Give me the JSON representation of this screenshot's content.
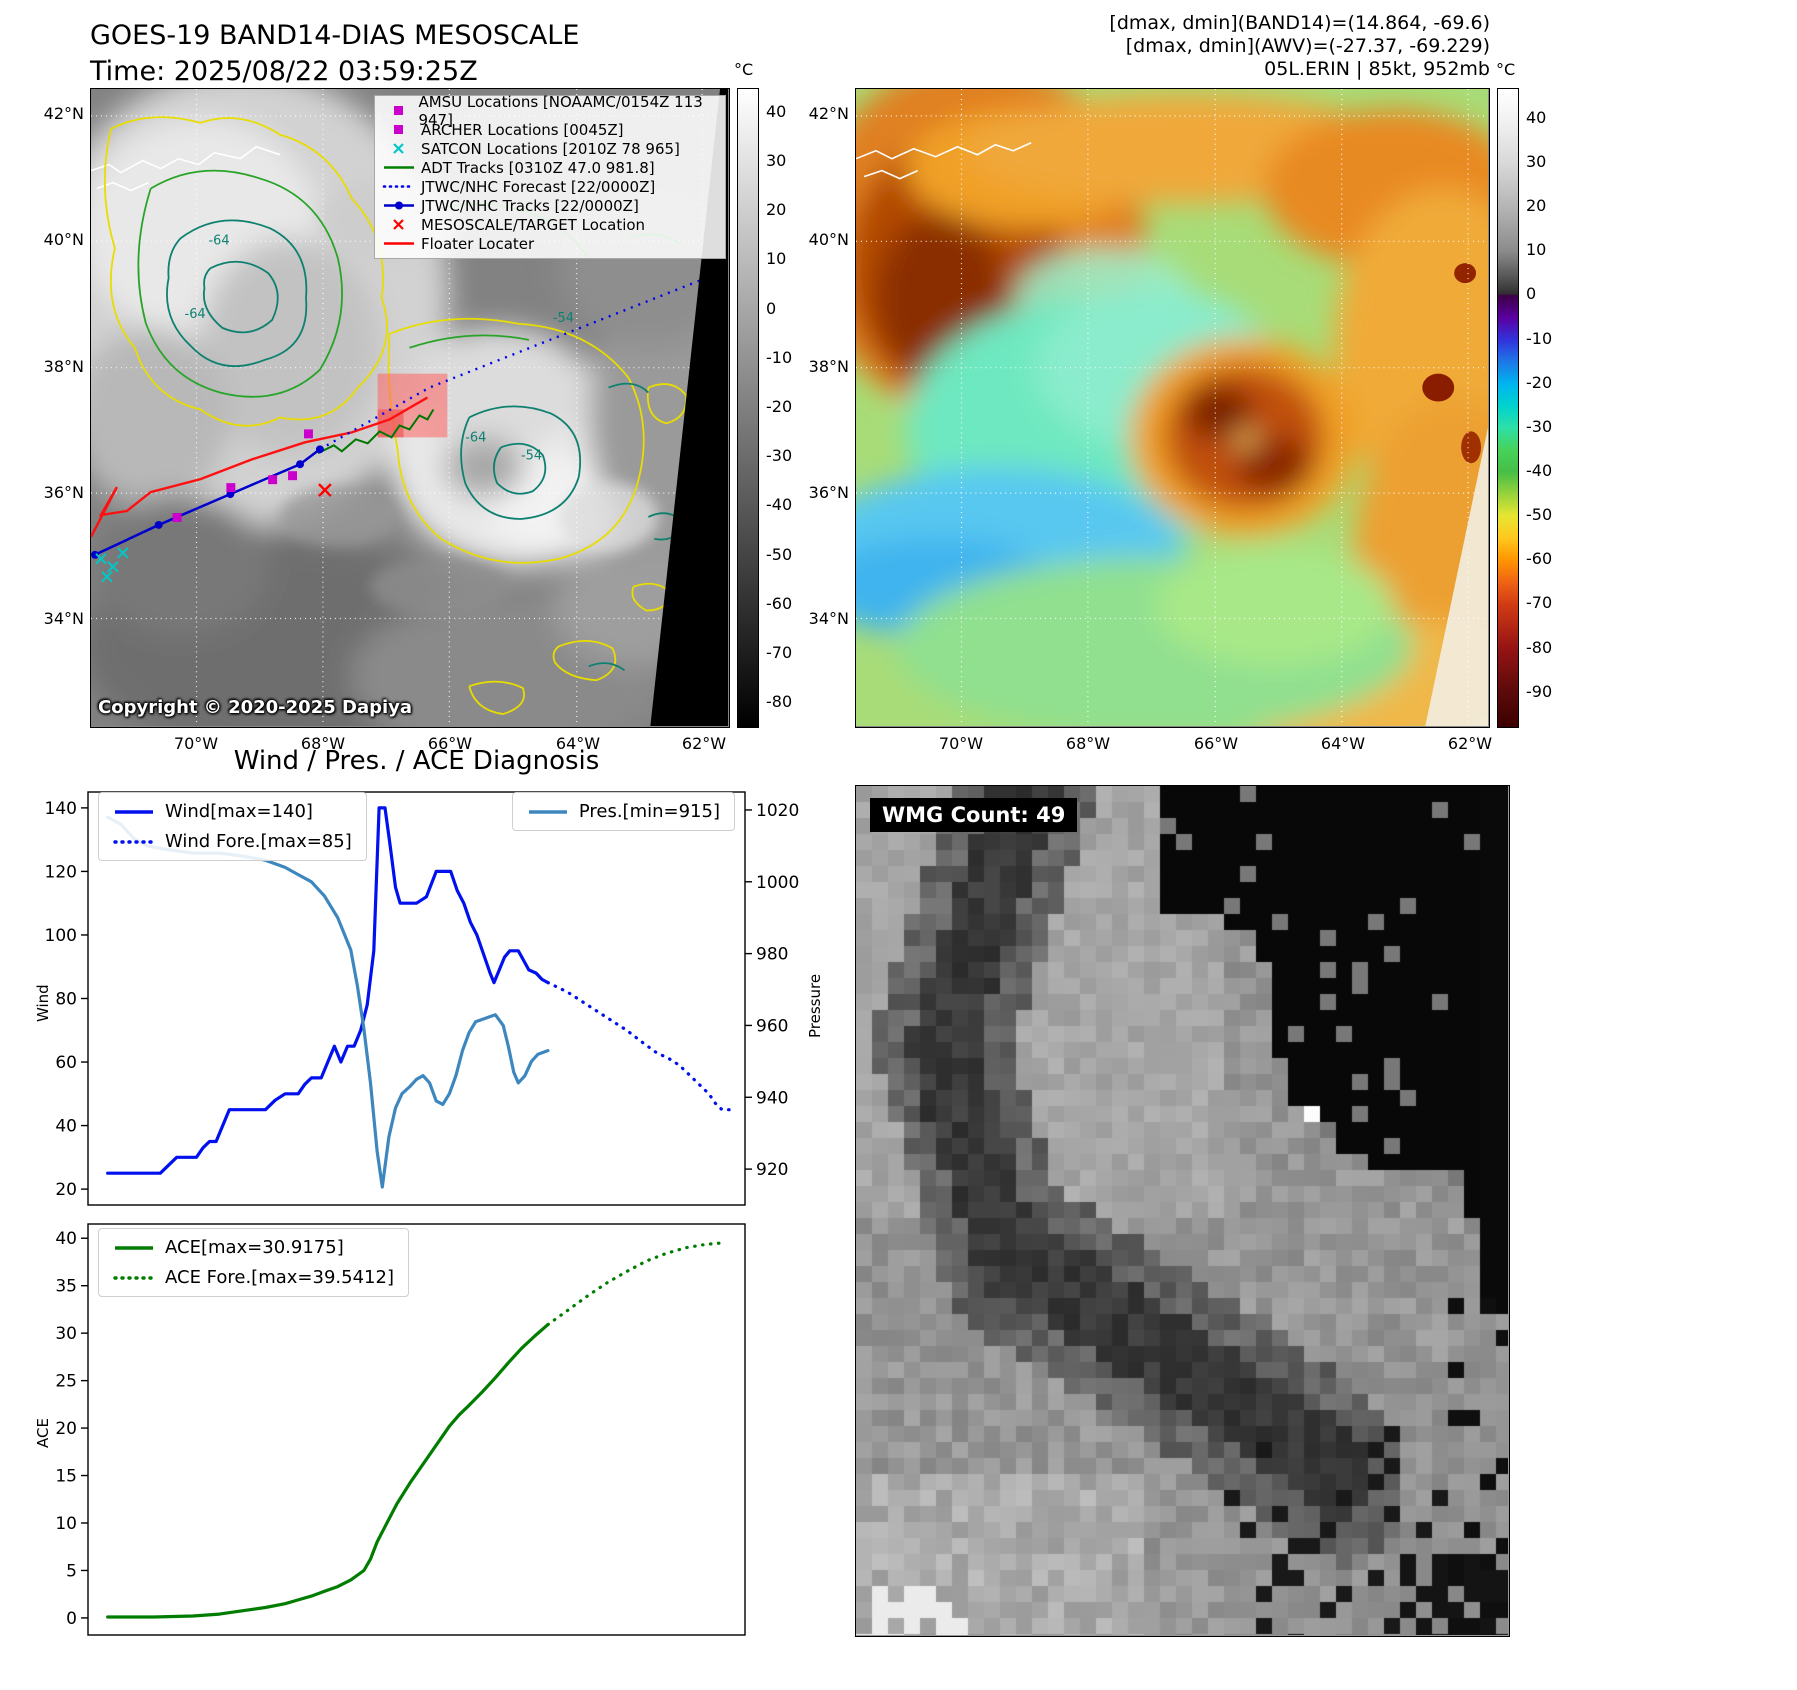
{
  "band14": {
    "title_line1": "GOES-19 BAND14-DIAS MESOSCALE",
    "title_line2": "Time: 2025/08/22 03:59:25Z",
    "copyright": "Copyright © 2020-2025 Dapiya",
    "legend": [
      {
        "label": "AMSU Locations [NOAAMC/0154Z 113 947]",
        "marker": "square",
        "color": "#cc00cc"
      },
      {
        "label": "ARCHER Locations [0045Z]",
        "marker": "square",
        "color": "#cc00cc"
      },
      {
        "label": "SATCON Locations [2010Z 78 965]",
        "marker": "x",
        "color": "#00c8c8"
      },
      {
        "label": "ADT Tracks [0310Z 47.0 981.8]",
        "marker": "line",
        "color": "#008000"
      },
      {
        "label": "JTWC/NHC Forecast [22/0000Z]",
        "marker": "dotted",
        "color": "#0000ee"
      },
      {
        "label": "JTWC/NHC Tracks [22/0000Z]",
        "marker": "line-dot",
        "color": "#0000cc"
      },
      {
        "label": "MESOSCALE/TARGET Location",
        "marker": "x",
        "color": "#ff0000"
      },
      {
        "label": "Floater Locater",
        "marker": "line",
        "color": "#ff0000"
      }
    ],
    "colorbar": {
      "unit": "°C",
      "ticks": [
        40,
        30,
        20,
        10,
        0,
        -10,
        -20,
        -30,
        -40,
        -50,
        -60,
        -70,
        -80
      ]
    },
    "lat_ticks": [
      "42°N",
      "40°N",
      "38°N",
      "36°N",
      "34°N"
    ],
    "lon_ticks": [
      "70°W",
      "68°W",
      "66°W",
      "64°W",
      "62°W"
    ],
    "contour_labels": [
      "-64",
      "-64",
      "-54",
      "-64",
      "-54"
    ]
  },
  "awv": {
    "header_line1": "[dmax, dmin](BAND14)=(14.864, -69.6)",
    "header_line2": "[dmax, dmin](AWV)=(-27.37, -69.229)",
    "header_line3": "05L.ERIN | 85kt, 952mb",
    "colorbar": {
      "unit": "°C",
      "ticks": [
        40,
        30,
        20,
        10,
        0,
        -10,
        -20,
        -30,
        -40,
        -50,
        -60,
        -70,
        -80,
        -90
      ],
      "stops": [
        {
          "v": 47,
          "c": "#ffffff"
        },
        {
          "v": 40,
          "c": "#f2f2f2"
        },
        {
          "v": 30,
          "c": "#d8d8d8"
        },
        {
          "v": 20,
          "c": "#b4b4b4"
        },
        {
          "v": 10,
          "c": "#8a8a8a"
        },
        {
          "v": 3,
          "c": "#4a4a4a"
        },
        {
          "v": 0.5,
          "c": "#303030"
        },
        {
          "v": 0,
          "c": "#3c0046"
        },
        {
          "v": -5,
          "c": "#5a00a0"
        },
        {
          "v": -10,
          "c": "#3232dc"
        },
        {
          "v": -15,
          "c": "#1e78e6"
        },
        {
          "v": -20,
          "c": "#00b4f0"
        },
        {
          "v": -25,
          "c": "#00d2cd"
        },
        {
          "v": -30,
          "c": "#2ee0a8"
        },
        {
          "v": -35,
          "c": "#46d25a"
        },
        {
          "v": -40,
          "c": "#46be46"
        },
        {
          "v": -45,
          "c": "#96d23c"
        },
        {
          "v": -50,
          "c": "#e6e632"
        },
        {
          "v": -55,
          "c": "#ffc81e"
        },
        {
          "v": -60,
          "c": "#ff9600"
        },
        {
          "v": -65,
          "c": "#f06414"
        },
        {
          "v": -70,
          "c": "#d23c14"
        },
        {
          "v": -75,
          "c": "#b42814"
        },
        {
          "v": -80,
          "c": "#961414"
        },
        {
          "v": -90,
          "c": "#5c0a0a"
        },
        {
          "v": -98,
          "c": "#3c0000"
        }
      ]
    },
    "lat_ticks": [
      "42°N",
      "40°N",
      "38°N",
      "36°N",
      "34°N"
    ],
    "lon_ticks": [
      "70°W",
      "68°W",
      "66°W",
      "64°W",
      "62°W"
    ]
  },
  "diagnosis": {
    "title": "Wind / Pres. / ACE Diagnosis",
    "wind_ylabel": "Wind",
    "pressure_ylabel": "Pressure",
    "ace_ylabel": "ACE",
    "legend_wind": "Wind[max=140]",
    "legend_wind_fore": "Wind Fore.[max=85]",
    "legend_pres": "Pres.[min=915]",
    "legend_ace": "ACE[max=30.9175]",
    "legend_ace_fore": "ACE Fore.[max=39.5412]"
  },
  "wmg": {
    "label": "WMG Count: 49"
  },
  "chart_data": [
    {
      "type": "line",
      "title": "Wind / Pres. / ACE Diagnosis",
      "panel": "wind-pressure",
      "x_range": [
        0,
        1
      ],
      "grid": false,
      "left_axis": {
        "label": "Wind",
        "range": [
          15,
          145
        ],
        "ticks": [
          20,
          40,
          60,
          80,
          100,
          120,
          140
        ]
      },
      "right_axis": {
        "label": "Pressure",
        "range": [
          910,
          1025
        ],
        "ticks": [
          920,
          940,
          960,
          980,
          1000,
          1020
        ]
      },
      "series": [
        {
          "id": "wind",
          "name": "Wind[max=140]",
          "axis": "left",
          "style": "solid",
          "color": "#0010ee",
          "points": [
            [
              0.03,
              25
            ],
            [
              0.11,
              25
            ],
            [
              0.125,
              28
            ],
            [
              0.135,
              30
            ],
            [
              0.165,
              30
            ],
            [
              0.175,
              33
            ],
            [
              0.185,
              35
            ],
            [
              0.195,
              35
            ],
            [
              0.205,
              40
            ],
            [
              0.215,
              45
            ],
            [
              0.27,
              45
            ],
            [
              0.285,
              48
            ],
            [
              0.3,
              50
            ],
            [
              0.32,
              50
            ],
            [
              0.33,
              53
            ],
            [
              0.34,
              55
            ],
            [
              0.355,
              55
            ],
            [
              0.365,
              60
            ],
            [
              0.375,
              65
            ],
            [
              0.385,
              60
            ],
            [
              0.395,
              65
            ],
            [
              0.405,
              65
            ],
            [
              0.415,
              70
            ],
            [
              0.425,
              78
            ],
            [
              0.435,
              95
            ],
            [
              0.443,
              140
            ],
            [
              0.452,
              140
            ],
            [
              0.46,
              128
            ],
            [
              0.468,
              115
            ],
            [
              0.475,
              110
            ],
            [
              0.5,
              110
            ],
            [
              0.515,
              112
            ],
            [
              0.53,
              120
            ],
            [
              0.552,
              120
            ],
            [
              0.562,
              114
            ],
            [
              0.572,
              110
            ],
            [
              0.582,
              104
            ],
            [
              0.592,
              100
            ],
            [
              0.602,
              94
            ],
            [
              0.612,
              88
            ],
            [
              0.618,
              85
            ],
            [
              0.626,
              89
            ],
            [
              0.634,
              93
            ],
            [
              0.642,
              95
            ],
            [
              0.655,
              95
            ],
            [
              0.663,
              92
            ],
            [
              0.671,
              89
            ],
            [
              0.682,
              88
            ],
            [
              0.691,
              86
            ],
            [
              0.7,
              85
            ]
          ]
        },
        {
          "id": "wind-fore",
          "name": "Wind Fore.[max=85]",
          "axis": "left",
          "style": "dotted",
          "color": "#0010ee",
          "points": [
            [
              0.7,
              85
            ],
            [
              0.73,
              82
            ],
            [
              0.76,
              78
            ],
            [
              0.79,
              74
            ],
            [
              0.82,
              70
            ],
            [
              0.845,
              66
            ],
            [
              0.865,
              63
            ],
            [
              0.885,
              61
            ],
            [
              0.9,
              59
            ],
            [
              0.915,
              56
            ],
            [
              0.93,
              53
            ],
            [
              0.945,
              50
            ],
            [
              0.955,
              47
            ],
            [
              0.965,
              45
            ],
            [
              0.98,
              45
            ]
          ]
        },
        {
          "id": "pres",
          "name": "Pres.[min=915]",
          "axis": "right",
          "style": "solid",
          "color": "#3d87be",
          "points": [
            [
              0.03,
              1018
            ],
            [
              0.05,
              1016
            ],
            [
              0.07,
              1012
            ],
            [
              0.09,
              1010
            ],
            [
              0.12,
              1009
            ],
            [
              0.16,
              1008
            ],
            [
              0.2,
              1008
            ],
            [
              0.24,
              1007
            ],
            [
              0.27,
              1006
            ],
            [
              0.3,
              1004
            ],
            [
              0.32,
              1002
            ],
            [
              0.34,
              1000
            ],
            [
              0.36,
              996
            ],
            [
              0.38,
              990
            ],
            [
              0.4,
              981
            ],
            [
              0.41,
              971
            ],
            [
              0.42,
              959
            ],
            [
              0.43,
              944
            ],
            [
              0.44,
              925
            ],
            [
              0.448,
              915
            ],
            [
              0.458,
              929
            ],
            [
              0.468,
              937
            ],
            [
              0.478,
              941
            ],
            [
              0.49,
              943
            ],
            [
              0.5,
              945
            ],
            [
              0.51,
              946
            ],
            [
              0.52,
              944
            ],
            [
              0.53,
              939
            ],
            [
              0.54,
              938
            ],
            [
              0.55,
              941
            ],
            [
              0.56,
              946
            ],
            [
              0.57,
              953
            ],
            [
              0.58,
              958
            ],
            [
              0.59,
              961
            ],
            [
              0.605,
              962
            ],
            [
              0.62,
              963
            ],
            [
              0.632,
              960
            ],
            [
              0.64,
              954
            ],
            [
              0.648,
              947
            ],
            [
              0.655,
              944
            ],
            [
              0.665,
              946
            ],
            [
              0.675,
              950
            ],
            [
              0.685,
              952
            ],
            [
              0.7,
              953
            ]
          ]
        }
      ]
    },
    {
      "type": "line",
      "panel": "ace",
      "x_range": [
        0,
        1
      ],
      "grid": false,
      "left_axis": {
        "label": "ACE",
        "range": [
          -1.8,
          41.5
        ],
        "ticks": [
          0,
          5,
          10,
          15,
          20,
          25,
          30,
          35,
          40
        ]
      },
      "series": [
        {
          "id": "ace",
          "name": "ACE[max=30.9175]",
          "axis": "left",
          "style": "solid",
          "color": "#007d00",
          "points": [
            [
              0.03,
              0.1
            ],
            [
              0.1,
              0.1
            ],
            [
              0.16,
              0.2
            ],
            [
              0.2,
              0.4
            ],
            [
              0.24,
              0.8
            ],
            [
              0.27,
              1.1
            ],
            [
              0.3,
              1.5
            ],
            [
              0.32,
              1.9
            ],
            [
              0.34,
              2.3
            ],
            [
              0.36,
              2.8
            ],
            [
              0.38,
              3.3
            ],
            [
              0.4,
              4.0
            ],
            [
              0.42,
              5.0
            ],
            [
              0.43,
              6.2
            ],
            [
              0.44,
              8.0
            ],
            [
              0.455,
              10.0
            ],
            [
              0.47,
              12.0
            ],
            [
              0.49,
              14.2
            ],
            [
              0.51,
              16.2
            ],
            [
              0.53,
              18.2
            ],
            [
              0.55,
              20.2
            ],
            [
              0.565,
              21.4
            ],
            [
              0.58,
              22.4
            ],
            [
              0.6,
              23.8
            ],
            [
              0.62,
              25.3
            ],
            [
              0.64,
              26.9
            ],
            [
              0.66,
              28.4
            ],
            [
              0.68,
              29.7
            ],
            [
              0.7,
              30.9
            ]
          ]
        },
        {
          "id": "ace-fore",
          "name": "ACE Fore.[max=39.5412]",
          "axis": "left",
          "style": "dotted",
          "color": "#007d00",
          "points": [
            [
              0.7,
              30.9
            ],
            [
              0.73,
              32.4
            ],
            [
              0.76,
              33.9
            ],
            [
              0.79,
              35.3
            ],
            [
              0.82,
              36.5
            ],
            [
              0.85,
              37.6
            ],
            [
              0.88,
              38.4
            ],
            [
              0.91,
              39.0
            ],
            [
              0.94,
              39.35
            ],
            [
              0.97,
              39.54
            ]
          ]
        }
      ]
    }
  ]
}
